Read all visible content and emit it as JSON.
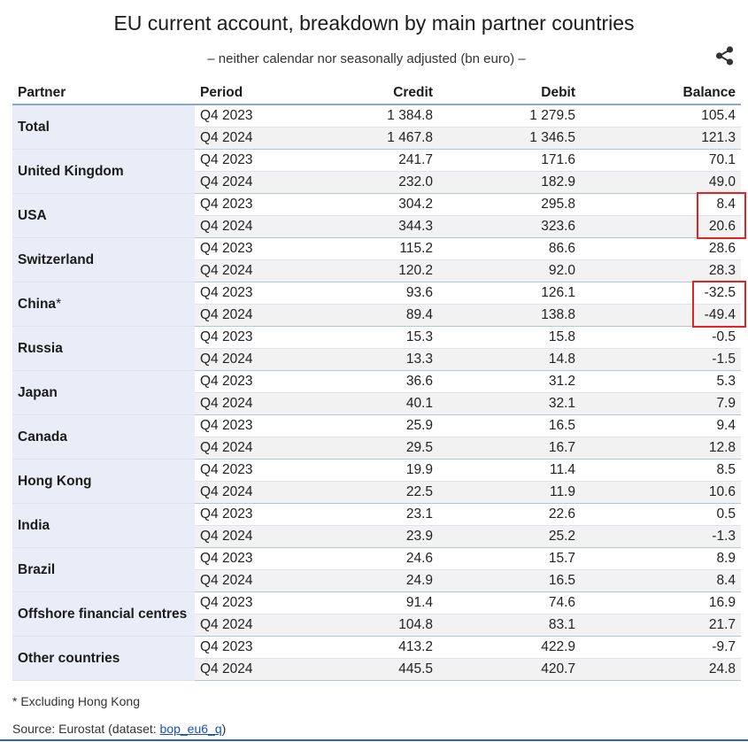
{
  "header": {
    "title": "EU current account, breakdown by main partner countries",
    "subtitle": "– neither calendar nor seasonally adjusted (bn euro) –",
    "share_icon": "share-icon"
  },
  "table": {
    "columns": [
      "Partner",
      "Period",
      "Credit",
      "Debit",
      "Balance"
    ],
    "groups": [
      {
        "partner": "Total",
        "rows": [
          {
            "period": "Q4 2023",
            "credit": "1 384.8",
            "debit": "1 279.5",
            "balance": "105.4"
          },
          {
            "period": "Q4 2024",
            "credit": "1 467.8",
            "debit": "1 346.5",
            "balance": "121.3"
          }
        ]
      },
      {
        "partner": "United Kingdom",
        "rows": [
          {
            "period": "Q4 2023",
            "credit": "241.7",
            "debit": "171.6",
            "balance": "70.1"
          },
          {
            "period": "Q4 2024",
            "credit": "232.0",
            "debit": "182.9",
            "balance": "49.0"
          }
        ]
      },
      {
        "partner": "USA",
        "highlight_balance": true,
        "rows": [
          {
            "period": "Q4 2023",
            "credit": "304.2",
            "debit": "295.8",
            "balance": "8.4"
          },
          {
            "period": "Q4 2024",
            "credit": "344.3",
            "debit": "323.6",
            "balance": "20.6"
          }
        ]
      },
      {
        "partner": "Switzerland",
        "rows": [
          {
            "period": "Q4 2023",
            "credit": "115.2",
            "debit": "86.6",
            "balance": "28.6"
          },
          {
            "period": "Q4 2024",
            "credit": "120.2",
            "debit": "92.0",
            "balance": "28.3"
          }
        ]
      },
      {
        "partner": "China",
        "partner_note": "*",
        "highlight_balance": true,
        "rows": [
          {
            "period": "Q4 2023",
            "credit": "93.6",
            "debit": "126.1",
            "balance": "-32.5"
          },
          {
            "period": "Q4 2024",
            "credit": "89.4",
            "debit": "138.8",
            "balance": "-49.4"
          }
        ]
      },
      {
        "partner": "Russia",
        "rows": [
          {
            "period": "Q4 2023",
            "credit": "15.3",
            "debit": "15.8",
            "balance": "-0.5"
          },
          {
            "period": "Q4 2024",
            "credit": "13.3",
            "debit": "14.8",
            "balance": "-1.5"
          }
        ]
      },
      {
        "partner": "Japan",
        "rows": [
          {
            "period": "Q4 2023",
            "credit": "36.6",
            "debit": "31.2",
            "balance": "5.3"
          },
          {
            "period": "Q4 2024",
            "credit": "40.1",
            "debit": "32.1",
            "balance": "7.9"
          }
        ]
      },
      {
        "partner": "Canada",
        "rows": [
          {
            "period": "Q4 2023",
            "credit": "25.9",
            "debit": "16.5",
            "balance": "9.4"
          },
          {
            "period": "Q4 2024",
            "credit": "29.5",
            "debit": "16.7",
            "balance": "12.8"
          }
        ]
      },
      {
        "partner": "Hong Kong",
        "rows": [
          {
            "period": "Q4 2023",
            "credit": "19.9",
            "debit": "11.4",
            "balance": "8.5"
          },
          {
            "period": "Q4 2024",
            "credit": "22.5",
            "debit": "11.9",
            "balance": "10.6"
          }
        ]
      },
      {
        "partner": "India",
        "rows": [
          {
            "period": "Q4 2023",
            "credit": "23.1",
            "debit": "22.6",
            "balance": "0.5"
          },
          {
            "period": "Q4 2024",
            "credit": "23.9",
            "debit": "25.2",
            "balance": "-1.3"
          }
        ]
      },
      {
        "partner": "Brazil",
        "rows": [
          {
            "period": "Q4 2023",
            "credit": "24.6",
            "debit": "15.7",
            "balance": "8.9"
          },
          {
            "period": "Q4 2024",
            "credit": "24.9",
            "debit": "16.5",
            "balance": "8.4"
          }
        ]
      },
      {
        "partner": "Offshore financial centres",
        "rows": [
          {
            "period": "Q4 2023",
            "credit": "91.4",
            "debit": "74.6",
            "balance": "16.9"
          },
          {
            "period": "Q4 2024",
            "credit": "104.8",
            "debit": "83.1",
            "balance": "21.7"
          }
        ]
      },
      {
        "partner": "Other countries",
        "rows": [
          {
            "period": "Q4 2023",
            "credit": "413.2",
            "debit": "422.9",
            "balance": "-9.7"
          },
          {
            "period": "Q4 2024",
            "credit": "445.5",
            "debit": "420.7",
            "balance": "24.8"
          }
        ]
      }
    ]
  },
  "highlight_color": "#e32222",
  "footer": {
    "footnote": "* Excluding Hong Kong",
    "source_prefix": "Source: Eurostat (dataset: ",
    "source_link": "bop_eu6_q",
    "source_suffix": ")"
  }
}
